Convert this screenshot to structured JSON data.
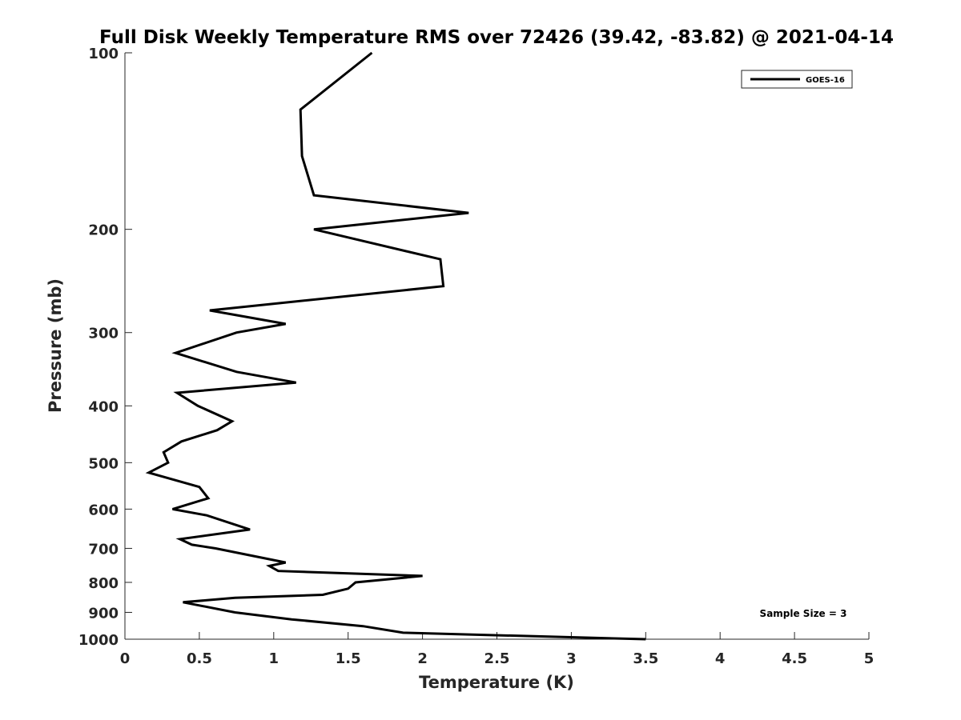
{
  "chart_data": {
    "type": "line",
    "title": "Full Disk Weekly Temperature RMS over 72426 (39.42, -83.82) @ 2021-04-14",
    "xlabel": "Temperature (K)",
    "ylabel": "Pressure (mb)",
    "xlim": [
      0,
      5
    ],
    "ylim": [
      100,
      1000
    ],
    "y_scale": "log",
    "y_reversed": true,
    "grid": false,
    "legend_position": "top-right",
    "x_ticks": [
      "0",
      "0.5",
      "1",
      "1.5",
      "2",
      "2.5",
      "3",
      "3.5",
      "4",
      "4.5",
      "5"
    ],
    "y_ticks": [
      "100",
      "200",
      "300",
      "400",
      "500",
      "600",
      "700",
      "800",
      "900",
      "1000"
    ],
    "annotation": "Sample Size = 3",
    "colors": {
      "line": "#000000",
      "axis": "#262626"
    },
    "series": [
      {
        "name": "GOES-16",
        "points": [
          [
            1.66,
            100
          ],
          [
            1.18,
            125
          ],
          [
            1.19,
            150
          ],
          [
            1.27,
            175
          ],
          [
            2.31,
            187.5
          ],
          [
            1.27,
            200
          ],
          [
            2.12,
            225
          ],
          [
            2.14,
            250
          ],
          [
            0.57,
            275
          ],
          [
            1.08,
            290
          ],
          [
            0.75,
            300
          ],
          [
            0.34,
            325
          ],
          [
            0.75,
            350
          ],
          [
            1.15,
            365
          ],
          [
            0.35,
            380
          ],
          [
            0.49,
            400
          ],
          [
            0.72,
            425
          ],
          [
            0.62,
            440
          ],
          [
            0.38,
            460
          ],
          [
            0.26,
            480
          ],
          [
            0.29,
            500
          ],
          [
            0.16,
            520
          ],
          [
            0.5,
            550
          ],
          [
            0.56,
            575
          ],
          [
            0.32,
            600
          ],
          [
            0.55,
            615
          ],
          [
            0.84,
            650
          ],
          [
            0.37,
            675
          ],
          [
            0.45,
            690
          ],
          [
            0.61,
            700
          ],
          [
            1.08,
            740
          ],
          [
            0.97,
            750
          ],
          [
            1.03,
            765
          ],
          [
            2.0,
            780
          ],
          [
            1.55,
            800
          ],
          [
            1.5,
            820
          ],
          [
            1.33,
            840
          ],
          [
            0.74,
            850
          ],
          [
            0.39,
            865
          ],
          [
            0.74,
            900
          ],
          [
            1.12,
            925
          ],
          [
            1.6,
            950
          ],
          [
            1.87,
            975
          ],
          [
            3.5,
            1000
          ]
        ]
      }
    ]
  }
}
